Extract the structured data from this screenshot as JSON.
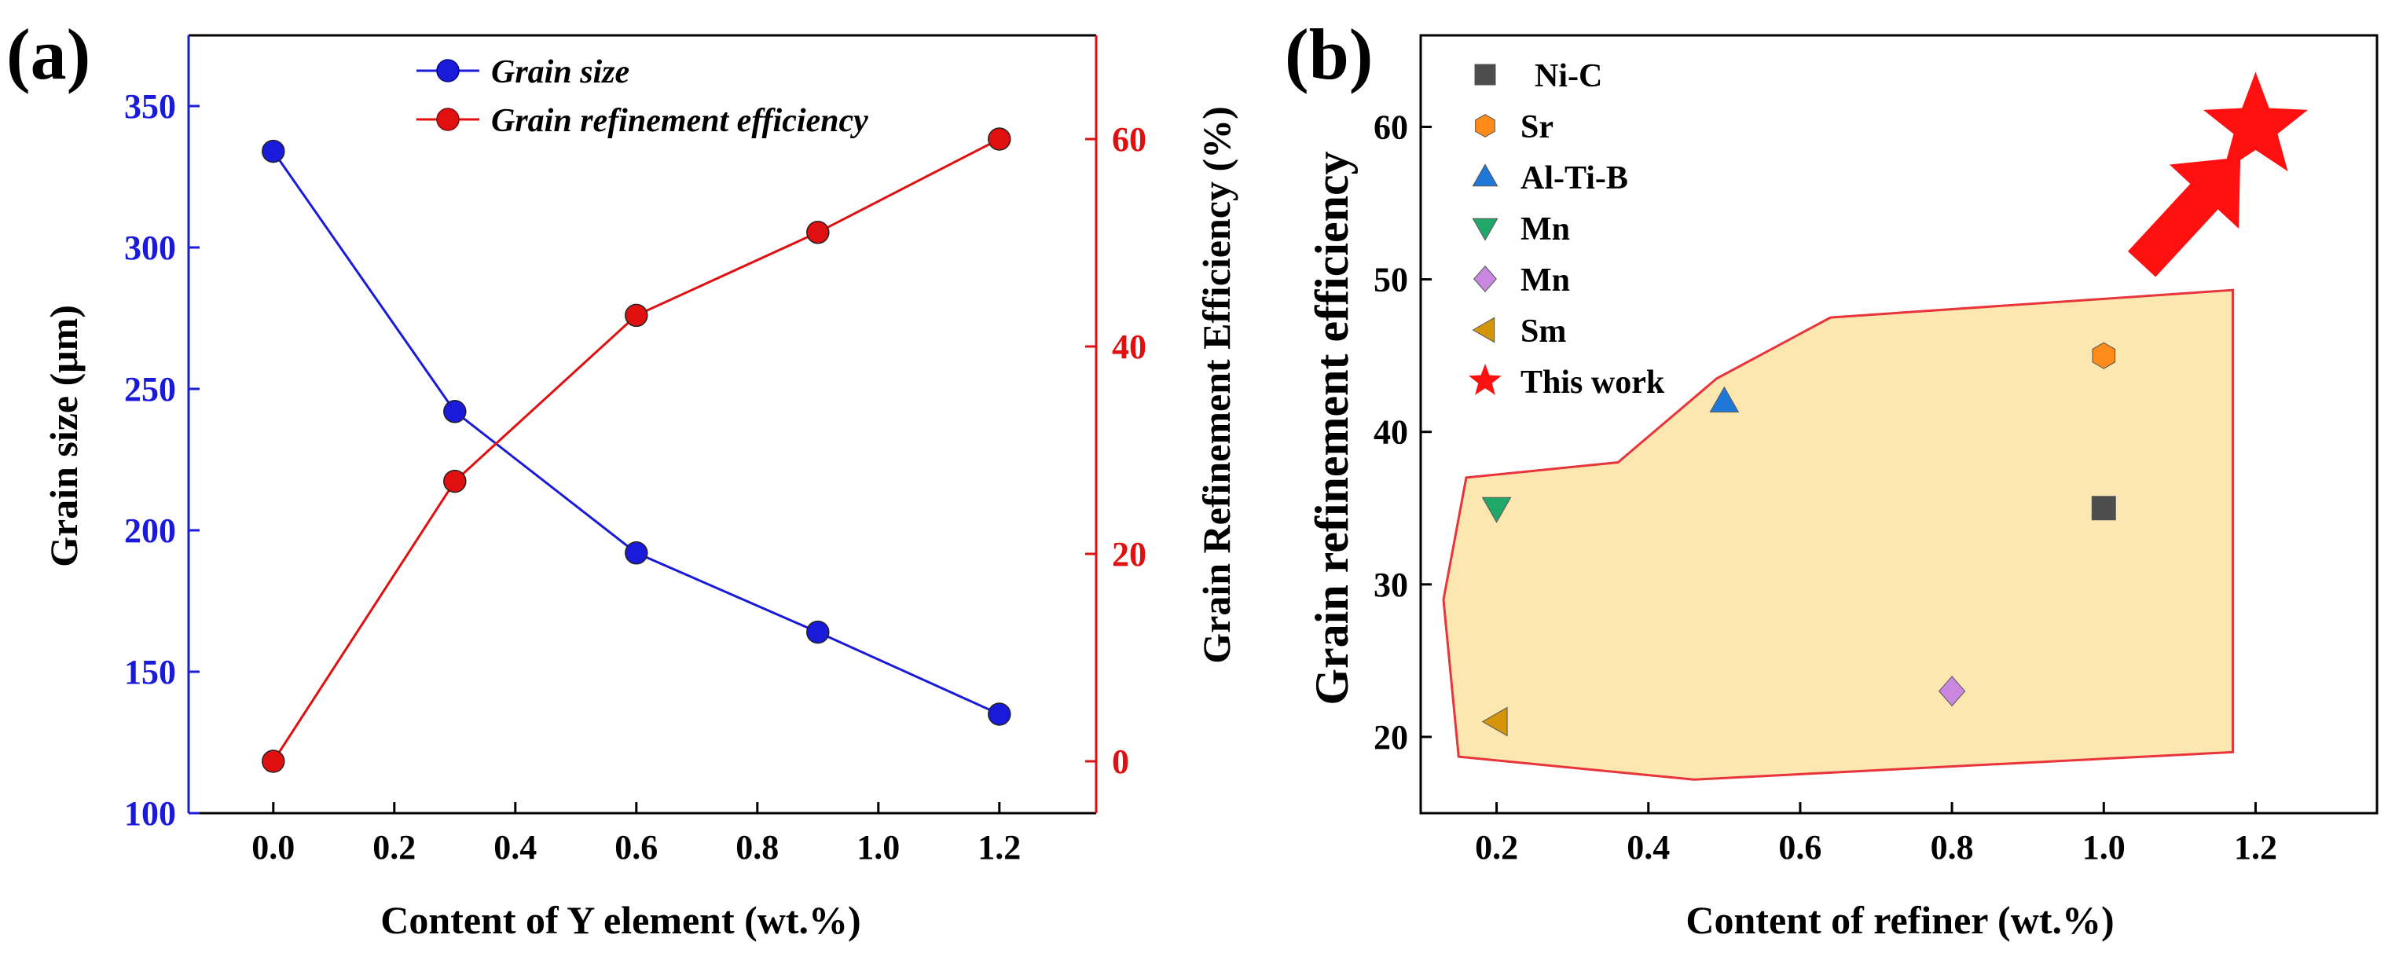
{
  "chart_data": [
    {
      "panel_label": "(a)",
      "type": "line",
      "xlabel": "Content of Y element (wt.%)",
      "ylabel": "Grain size (μm)",
      "y2label": "Grain Refinement Efficiency (%)",
      "xlim": [
        -0.14,
        1.36
      ],
      "ylim": [
        100,
        375
      ],
      "y2lim": [
        -5,
        70
      ],
      "x_ticks": [
        "0.0",
        "0.2",
        "0.4",
        "0.6",
        "0.8",
        "1.0",
        "1.2"
      ],
      "y_ticks": [
        "100",
        "150",
        "200",
        "250",
        "300",
        "350"
      ],
      "y2_ticks": [
        "0",
        "20",
        "40",
        "60"
      ],
      "grid": false,
      "legend_position": "top-center",
      "series": [
        {
          "name": "Grain size",
          "axis": "left",
          "color": "#1a1adb",
          "x": [
            0,
            0.3,
            0.6,
            0.9,
            1.2
          ],
          "values": [
            334,
            242,
            192,
            164,
            135
          ]
        },
        {
          "name": "Grain refinement efficiency",
          "axis": "right",
          "color": "#e01010",
          "x": [
            0,
            0.3,
            0.6,
            0.9,
            1.2
          ],
          "values": [
            0,
            27,
            43,
            51,
            60
          ]
        }
      ]
    },
    {
      "panel_label": "(b)",
      "type": "scatter",
      "xlabel": "Content of  refiner (wt.%)",
      "ylabel": "Grain refinement efficiency",
      "xlim": [
        0.1,
        1.36
      ],
      "ylim": [
        15,
        66
      ],
      "x_ticks": [
        "0.2",
        "0.4",
        "0.6",
        "0.8",
        "1.0",
        "1.2"
      ],
      "y_ticks": [
        "20",
        "30",
        "40",
        "50",
        "60"
      ],
      "grid": false,
      "legend_position": "top-left",
      "series": [
        {
          "name": "Ni-C",
          "marker": "square",
          "color": "#4d4d4d",
          "x": [
            1.0
          ],
          "values": [
            35
          ]
        },
        {
          "name": "Sr",
          "marker": "hexagon",
          "color": "#ff8c1a",
          "x": [
            1.0
          ],
          "values": [
            45
          ]
        },
        {
          "name": "Al-Ti-B",
          "marker": "triangle-up",
          "color": "#1f77d8",
          "x": [
            0.5
          ],
          "values": [
            42
          ]
        },
        {
          "name": "Mn",
          "marker": "triangle-down",
          "color": "#1fa86a",
          "x": [
            0.2
          ],
          "values": [
            35
          ]
        },
        {
          "name": "Mn",
          "marker": "diamond",
          "color": "#c987e0",
          "x": [
            0.8
          ],
          "values": [
            23
          ]
        },
        {
          "name": "Sm",
          "marker": "triangle-left",
          "color": "#d4950a",
          "x": [
            0.2
          ],
          "values": [
            21
          ]
        },
        {
          "name": "This work",
          "marker": "star",
          "color": "#ff1010",
          "x": [
            1.2
          ],
          "values": [
            60
          ]
        }
      ],
      "shaded_region": {
        "fill": "#fde7b0",
        "stroke": "#e8343a",
        "points_data": [
          [
            0.13,
            29
          ],
          [
            0.16,
            37
          ],
          [
            0.36,
            38
          ],
          [
            0.49,
            43.5
          ],
          [
            0.64,
            47.5
          ],
          [
            1.17,
            49.3
          ],
          [
            1.17,
            19
          ],
          [
            0.46,
            17.2
          ],
          [
            0.15,
            18.7
          ]
        ]
      },
      "arrow": {
        "color": "#ff1010",
        "from": [
          1.05,
          51
        ],
        "to": [
          1.18,
          58
        ]
      }
    }
  ]
}
